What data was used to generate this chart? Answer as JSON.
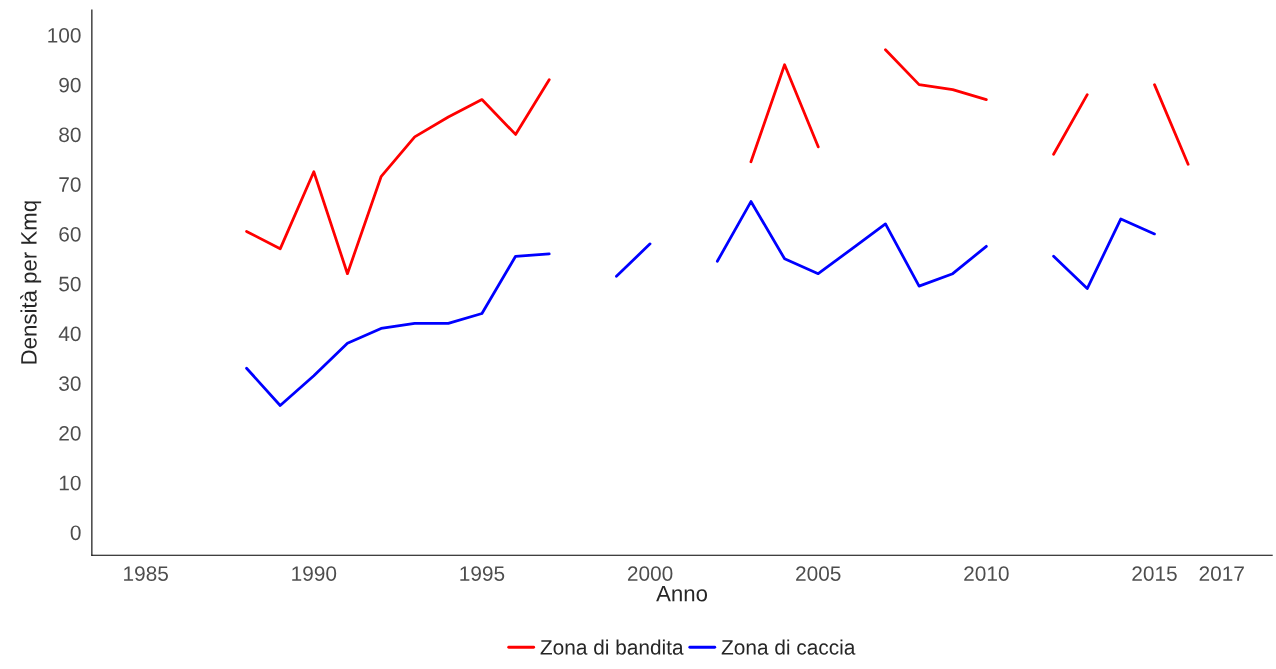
{
  "chart_data": {
    "type": "line",
    "xlabel": "Anno",
    "ylabel": "Densità per Kmq",
    "x": [
      1988,
      1989,
      1990,
      1991,
      1992,
      1993,
      1994,
      1995,
      1996,
      1997,
      1998,
      1999,
      2000,
      2001,
      2002,
      2003,
      2004,
      2005,
      2006,
      2007,
      2008,
      2009,
      2010,
      2011,
      2012,
      2013,
      2014,
      2015,
      2016
    ],
    "series": [
      {
        "name": "Zona di bandita",
        "color": "#ff0000",
        "values": [
          60.5,
          57,
          72.5,
          52,
          71.5,
          79.5,
          83.5,
          87,
          80,
          91,
          null,
          null,
          null,
          null,
          null,
          74.5,
          94,
          77.5,
          null,
          97,
          90,
          89,
          87,
          null,
          76,
          88,
          null,
          90,
          74
        ]
      },
      {
        "name": "Zona di caccia",
        "color": "#0000ff",
        "values": [
          33,
          25.5,
          31.5,
          38,
          41,
          42,
          42,
          44,
          55.5,
          56,
          null,
          51.5,
          58,
          null,
          54.5,
          66.5,
          55,
          52,
          57,
          62,
          49.5,
          52,
          57.5,
          null,
          55.5,
          49,
          63,
          60,
          null
        ]
      }
    ],
    "xlim": [
      1983.4,
      2018.5
    ],
    "ylim": [
      -4.6,
      105
    ],
    "xticks": [
      1985,
      1990,
      1995,
      2000,
      2005,
      2010,
      2015,
      2017
    ],
    "yticks": [
      0,
      10,
      20,
      30,
      40,
      50,
      60,
      70,
      80,
      90,
      100
    ],
    "grid": false,
    "legend": "bottom",
    "line_style": "solid",
    "marker": "none"
  }
}
